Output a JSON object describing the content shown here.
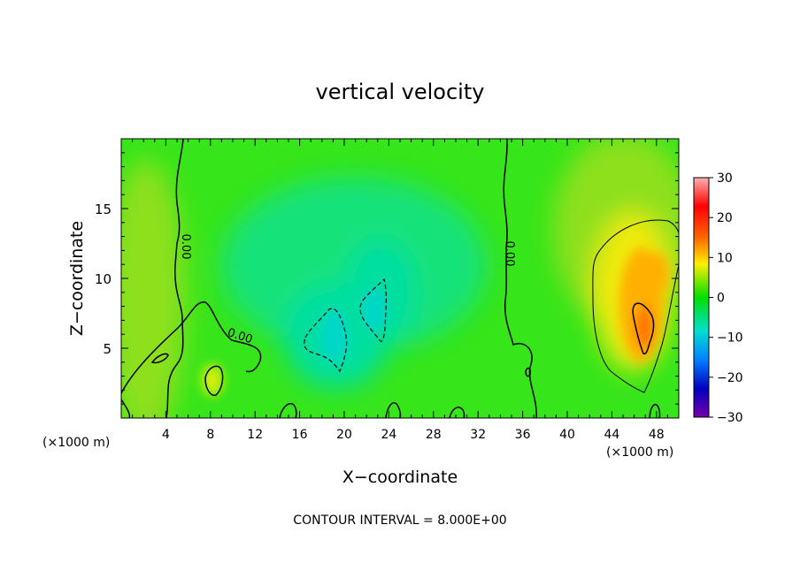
{
  "chart_data": {
    "type": "heatmap",
    "title": "vertical velocity",
    "xlabel": "X−coordinate",
    "ylabel": "Z−coordinate",
    "x_unit_left": "(×1000 m)",
    "x_unit_right": "(×1000 m)",
    "footer": "CONTOUR INTERVAL = 8.000E+00",
    "xlim": [
      0,
      50
    ],
    "ylim": [
      0,
      20
    ],
    "x_ticks": [
      4,
      8,
      12,
      16,
      20,
      24,
      28,
      32,
      36,
      40,
      44,
      48
    ],
    "y_ticks": [
      5,
      10,
      15
    ],
    "colorbar": {
      "range": [
        -30,
        30
      ],
      "ticks": [
        "30",
        "20",
        "10",
        "0",
        "−10",
        "−20",
        "−30"
      ],
      "colors": [
        "#ffb0b0",
        "#ff0000",
        "#ff6600",
        "#ffee00",
        "#00e000",
        "#00e0d0",
        "#0080ff",
        "#0000c0",
        "#7700aa"
      ]
    },
    "background_value": 1,
    "features": [
      {
        "kind": "updraft",
        "x": 46.5,
        "z": 8.5,
        "peak": 17
      },
      {
        "kind": "updraft",
        "x": 46.0,
        "z": 11.5,
        "peak": 11
      },
      {
        "kind": "updraft",
        "x": 8.5,
        "z": 2.8,
        "peak": 10
      },
      {
        "kind": "downdraft",
        "x": 19.0,
        "z": 6.5,
        "peak": -9
      },
      {
        "kind": "downdraft",
        "x": 23.5,
        "z": 7.5,
        "peak": -8
      }
    ],
    "contour_labels": [
      {
        "text": "0.00",
        "x": 5.5,
        "z": 12.2,
        "rotate": 90
      },
      {
        "text": "0.00",
        "x": 10.8,
        "z": 5.8,
        "rotate": 18
      },
      {
        "text": "0.00",
        "x": 34.2,
        "z": 11.7,
        "rotate": 90
      }
    ]
  }
}
